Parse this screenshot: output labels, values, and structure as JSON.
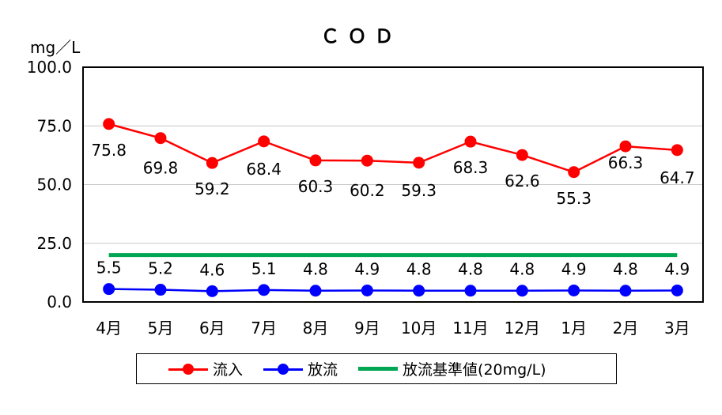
{
  "chart_data": {
    "type": "line",
    "title": "ＣＯＤ",
    "ylabel": "mg／L",
    "xlabel": "",
    "categories": [
      "4月",
      "5月",
      "6月",
      "7月",
      "8月",
      "9月",
      "10月",
      "11月",
      "12月",
      "1月",
      "2月",
      "3月"
    ],
    "ylim": [
      0,
      100
    ],
    "yticks": [
      "0.0",
      "25.0",
      "50.0",
      "75.0",
      "100.0"
    ],
    "grid": true,
    "legend_position": "bottom",
    "series": [
      {
        "name": "流入",
        "color": "#ff0000",
        "values": [
          75.8,
          69.8,
          59.2,
          68.4,
          60.3,
          60.2,
          59.3,
          68.3,
          62.6,
          55.3,
          66.3,
          64.7
        ],
        "labels": [
          "75.8",
          "69.8",
          "59.2",
          "68.4",
          "60.3",
          "60.2",
          "59.3",
          "68.3",
          "62.6",
          "55.3",
          "66.3",
          "64.7"
        ]
      },
      {
        "name": "放流",
        "color": "#0000ff",
        "values": [
          5.5,
          5.2,
          4.6,
          5.1,
          4.8,
          4.9,
          4.8,
          4.8,
          4.8,
          4.9,
          4.8,
          4.9
        ],
        "labels": [
          "5.5",
          "5.2",
          "4.6",
          "5.1",
          "4.8",
          "4.9",
          "4.8",
          "4.8",
          "4.8",
          "4.9",
          "4.8",
          "4.9"
        ]
      },
      {
        "name": "放流基準値(20mg/L)",
        "color": "#00a651",
        "values": [
          20,
          20,
          20,
          20,
          20,
          20,
          20,
          20,
          20,
          20,
          20,
          20
        ]
      }
    ]
  }
}
